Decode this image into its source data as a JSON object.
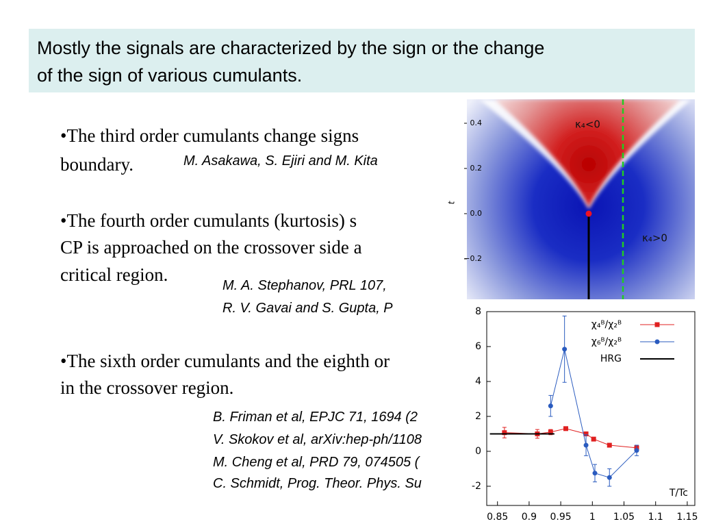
{
  "header": {
    "lines": [
      "Mostly the signals are characterized by the sign or the change",
      "of the sign of various cumulants."
    ]
  },
  "bullets": [
    {
      "lines": [
        "•The third order cumulants change signs",
        "boundary."
      ],
      "citations": [
        "M. Asakawa, S. Ejiri and M. Kita"
      ]
    },
    {
      "lines": [
        "•The fourth order cumulants (kurtosis) s",
        "CP is approached on the crossover side a",
        "critical region."
      ],
      "citations": [
        "M. A. Stephanov, PRL 107,",
        "R. V. Gavai and S. Gupta, P"
      ]
    },
    {
      "lines": [
        "•The sixth order cumulants and the eighth or",
        "in the crossover region."
      ],
      "citations": [
        "B. Friman et al, EPJC 71, 1694 (2",
        "V. Skokov et al, arXiv:hep-ph/1108",
        "M. Cheng et al, PRD 79, 074505 (",
        "C. Schmidt, Prog. Theor. Phys. Su"
      ]
    }
  ],
  "chart_data": [
    {
      "type": "heatmap",
      "y_label": "t",
      "ylim": [
        -0.379,
        0.506
      ],
      "yticks": [
        0.4,
        0.2,
        {
          "value": 0,
          "label": "0.0"
        },
        {
          "value": -0.2,
          "label": "−0.2"
        }
      ],
      "annotations": [
        "κ₄<0",
        "κ₄>0"
      ]
    },
    {
      "type": "line",
      "x_label": "T/Tc",
      "xlim": [
        0.833,
        1.162
      ],
      "ylim": [
        -3.1,
        8
      ],
      "xticks": [
        0.85,
        0.9,
        0.95,
        1,
        1.05,
        1.1,
        1.15
      ],
      "yticks": [
        8,
        6,
        4,
        2,
        0,
        -2
      ],
      "series": [
        {
          "name": "χ₄ᴮ/χ₂ᴮ",
          "color": "#e02020",
          "x": [
            0.861,
            0.913,
            0.934,
            0.958,
            0.99,
            1.002,
            1.027,
            1.07
          ],
          "values": [
            1.07,
            1.0,
            1.1,
            1.3,
            1.0,
            0.7,
            0.35,
            0.2
          ],
          "errors": [
            0.3,
            0.25,
            0.15,
            0.1,
            0.1,
            0.08,
            0.05,
            0.05
          ]
        },
        {
          "name": "χ₆ᴮ/χ₂ᴮ",
          "color": "#2a5bbf",
          "x": [
            0.934,
            0.956,
            0.99,
            1.004,
            1.027,
            1.07
          ],
          "values": [
            2.6,
            5.85,
            0.35,
            -1.25,
            -1.5,
            0.05
          ],
          "errors": [
            0.6,
            1.9,
            0.6,
            0.5,
            0.5,
            0.3
          ]
        },
        {
          "name": "HRG",
          "color": "#000000",
          "x": [
            0.838,
            0.94
          ],
          "values": [
            1,
            1
          ]
        }
      ]
    }
  ]
}
